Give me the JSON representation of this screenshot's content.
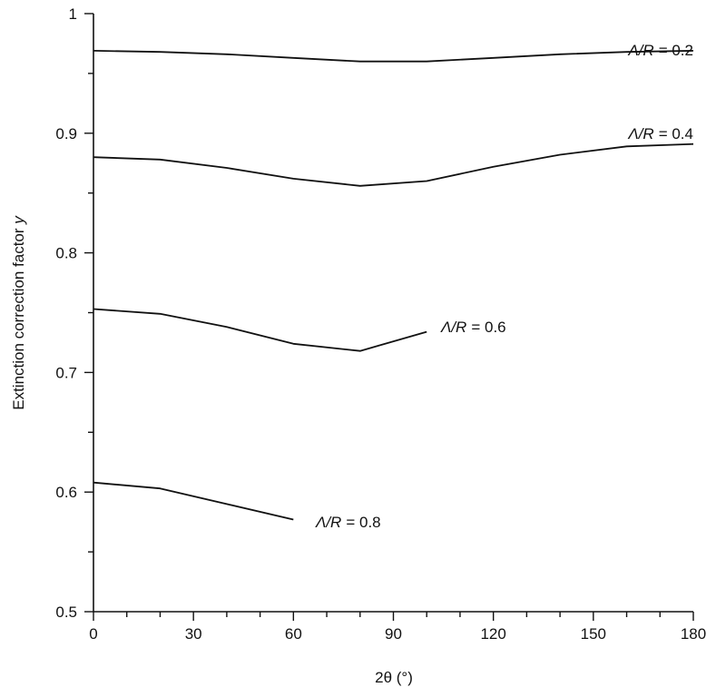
{
  "chart_data": {
    "type": "line",
    "title": "",
    "xlabel": "2θ (°)",
    "ylabel": "Extinction correction factor y",
    "ylabel_main": "Extinction correction factor ",
    "ylabel_symbol": "y",
    "xlim": [
      0,
      180
    ],
    "ylim": [
      0.5,
      1.0
    ],
    "x_major_ticks": [
      0,
      30,
      60,
      90,
      120,
      150,
      180
    ],
    "x_minor_ticks": [
      10,
      20,
      40,
      50,
      70,
      80,
      100,
      110,
      130,
      140,
      160,
      170
    ],
    "y_major_ticks": [
      0.5,
      0.6,
      0.7,
      0.8,
      0.9,
      1.0
    ],
    "y_minor_ticks": [
      0.55,
      0.65,
      0.75,
      0.85,
      0.95
    ],
    "x_tick_labels": [
      "0",
      "30",
      "60",
      "90",
      "120",
      "150",
      "180"
    ],
    "y_tick_labels": [
      "0.5",
      "0.6",
      "0.7",
      "0.8",
      "0.9",
      "1"
    ],
    "grid": false,
    "legend": "none",
    "series": [
      {
        "label": "Λ/R = 0.2",
        "label_symbol": "Λ/R",
        "label_value": "= 0.2",
        "x": [
          0,
          20,
          40,
          60,
          80,
          100,
          120,
          140,
          160,
          180
        ],
        "y": [
          0.969,
          0.968,
          0.966,
          0.963,
          0.96,
          0.96,
          0.963,
          0.966,
          0.968,
          0.969
        ]
      },
      {
        "label": "Λ/R = 0.4",
        "label_symbol": "Λ/R",
        "label_value": "= 0.4",
        "x": [
          0,
          20,
          40,
          60,
          80,
          100,
          120,
          140,
          160,
          180
        ],
        "y": [
          0.88,
          0.878,
          0.871,
          0.862,
          0.856,
          0.86,
          0.872,
          0.882,
          0.889,
          0.891
        ]
      },
      {
        "label": "Λ/R = 0.6",
        "label_symbol": "Λ/R",
        "label_value": "= 0.6",
        "x": [
          0,
          20,
          40,
          60,
          80,
          100
        ],
        "y": [
          0.753,
          0.749,
          0.738,
          0.724,
          0.718,
          0.734
        ]
      },
      {
        "label": "Λ/R = 0.8",
        "label_symbol": "Λ/R",
        "label_value": "= 0.8",
        "x": [
          0,
          20,
          40,
          60
        ],
        "y": [
          0.608,
          0.603,
          0.59,
          0.577
        ]
      }
    ]
  }
}
